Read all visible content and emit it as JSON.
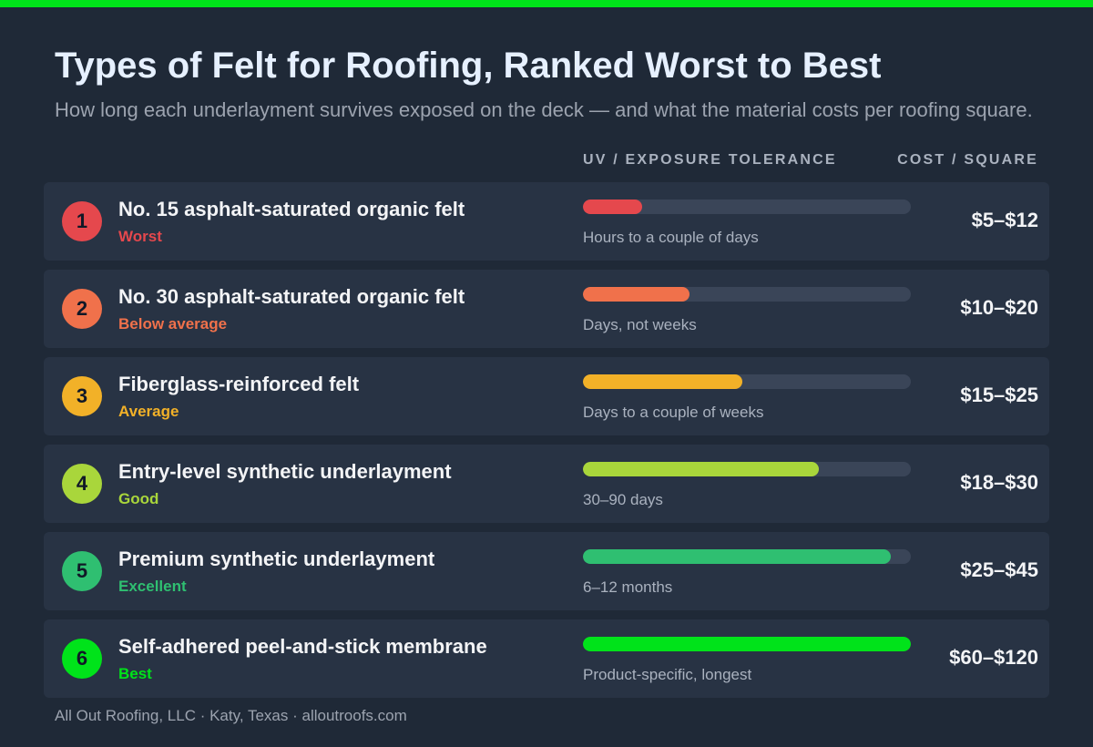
{
  "accent_color": "#00e31a",
  "title": "Types of Felt for Roofing, Ranked Worst to Best",
  "subtitle": "How long each underlayment survives exposed on the deck — and what the material costs per roofing square.",
  "columns": {
    "uv": "UV / EXPOSURE TOLERANCE",
    "cost": "COST / SQUARE"
  },
  "rows": [
    {
      "rank": "1",
      "name": "No. 15 asphalt-saturated organic felt",
      "rating": "Worst",
      "color": "#e5484d",
      "exposure_level": 0.18,
      "exposure": "Hours to a couple of days",
      "cost": "$5–$12"
    },
    {
      "rank": "2",
      "name": "No. 30 asphalt-saturated organic felt",
      "rating": "Below average",
      "color": "#f0714b",
      "exposure_level": 0.325,
      "exposure": "Days, not weeks",
      "cost": "$10–$20"
    },
    {
      "rank": "3",
      "name": "Fiberglass-reinforced felt",
      "rating": "Average",
      "color": "#f2b128",
      "exposure_level": 0.485,
      "exposure": "Days to a couple of weeks",
      "cost": "$15–$25"
    },
    {
      "rank": "4",
      "name": "Entry-level synthetic underlayment",
      "rating": "Good",
      "color": "#a9d63b",
      "exposure_level": 0.72,
      "exposure": "30–90 days",
      "cost": "$18–$30"
    },
    {
      "rank": "5",
      "name": "Premium synthetic underlayment",
      "rating": "Excellent",
      "color": "#2fbf71",
      "exposure_level": 0.94,
      "exposure": "6–12 months",
      "cost": "$25–$45"
    },
    {
      "rank": "6",
      "name": "Self-adhered peel-and-stick membrane",
      "rating": "Best",
      "color": "#00e31a",
      "exposure_level": 1.0,
      "exposure": "Product-specific, longest",
      "cost": "$60–$120"
    }
  ],
  "footer": "All Out Roofing, LLC · Katy, Texas · alloutroofs.com"
}
